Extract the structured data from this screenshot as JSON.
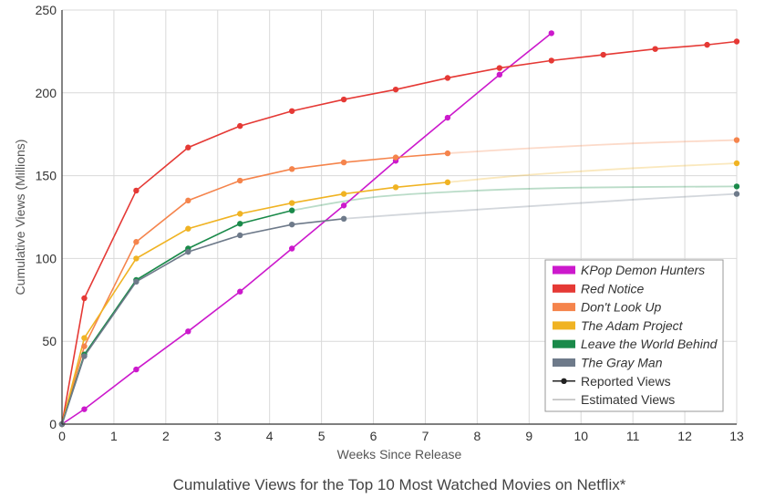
{
  "chart_data": {
    "type": "line",
    "title": "Cumulative Views for the Top 10 Most Watched Movies on Netflix*",
    "xlabel": "Weeks Since Release",
    "ylabel": "Cumulative Views (Millions)",
    "xlim": [
      0,
      13
    ],
    "ylim": [
      0,
      250
    ],
    "xticks": [
      "0",
      "1",
      "2",
      "3",
      "4",
      "5",
      "6",
      "7",
      "8",
      "9",
      "10",
      "11",
      "12",
      "13"
    ],
    "yticks": [
      "0",
      "50",
      "100",
      "150",
      "200",
      "250"
    ],
    "grid": true,
    "legend_position": "bottom-right",
    "legend": {
      "reported_label": "Reported Views",
      "estimated_label": "Estimated Views"
    },
    "series": [
      {
        "name": "KPop Demon Hunters",
        "color": "#cc19cc",
        "reported": [
          [
            0,
            0
          ],
          [
            0.43,
            9
          ],
          [
            1.43,
            33
          ],
          [
            2.43,
            56
          ],
          [
            3.43,
            80
          ],
          [
            4.43,
            106
          ],
          [
            5.43,
            132
          ],
          [
            6.43,
            159
          ],
          [
            7.43,
            185
          ],
          [
            8.43,
            211
          ],
          [
            9.43,
            236
          ]
        ],
        "estimated": []
      },
      {
        "name": "Red Notice",
        "color": "#e53935",
        "reported": [
          [
            0,
            0
          ],
          [
            0.43,
            76
          ],
          [
            1.43,
            141
          ],
          [
            2.43,
            167
          ],
          [
            3.43,
            180
          ],
          [
            4.43,
            189
          ],
          [
            5.43,
            196
          ],
          [
            6.43,
            202
          ],
          [
            7.43,
            209
          ],
          [
            8.43,
            215
          ],
          [
            9.43,
            219.5
          ],
          [
            10.43,
            223
          ],
          [
            11.43,
            226.5
          ],
          [
            12.43,
            229
          ],
          [
            13,
            231
          ]
        ],
        "estimated": []
      },
      {
        "name": "Don't Look Up",
        "color": "#f5844c",
        "reported": [
          [
            0,
            0
          ],
          [
            0.43,
            47
          ],
          [
            1.43,
            110
          ],
          [
            2.43,
            135
          ],
          [
            3.43,
            147
          ],
          [
            4.43,
            154
          ],
          [
            5.43,
            158
          ],
          [
            6.43,
            161
          ],
          [
            7.43,
            163.5
          ]
        ],
        "estimated": [
          [
            7.43,
            163.5
          ],
          [
            9,
            166.5
          ],
          [
            11,
            169.5
          ],
          [
            13,
            171.5
          ]
        ],
        "end_point": [
          13,
          171.5
        ]
      },
      {
        "name": "The Adam Project",
        "color": "#f0b323",
        "reported": [
          [
            0,
            0
          ],
          [
            0.43,
            52
          ],
          [
            1.43,
            100
          ],
          [
            2.43,
            118
          ],
          [
            3.43,
            127
          ],
          [
            4.43,
            133.5
          ],
          [
            5.43,
            139
          ],
          [
            6.43,
            143
          ],
          [
            7.43,
            146
          ]
        ],
        "estimated": [
          [
            7.43,
            146
          ],
          [
            9,
            150.5
          ],
          [
            11,
            154.5
          ],
          [
            13,
            157.5
          ]
        ],
        "end_point": [
          13,
          157.5
        ]
      },
      {
        "name": "Leave the World Behind",
        "color": "#1a8a4a",
        "reported": [
          [
            0,
            0
          ],
          [
            0.43,
            42
          ],
          [
            1.43,
            87
          ],
          [
            2.43,
            106
          ],
          [
            3.43,
            121
          ],
          [
            4.43,
            129
          ]
        ],
        "estimated": [
          [
            4.43,
            129
          ],
          [
            6,
            137
          ],
          [
            8,
            141
          ],
          [
            10,
            142.8
          ],
          [
            13,
            143.5
          ]
        ],
        "end_point": [
          13,
          143.5
        ]
      },
      {
        "name": "The Gray Man",
        "color": "#6e7a8a",
        "reported": [
          [
            0,
            0
          ],
          [
            0.43,
            41
          ],
          [
            1.43,
            86
          ],
          [
            2.43,
            104
          ],
          [
            3.43,
            114
          ],
          [
            4.43,
            120.5
          ],
          [
            5.43,
            124
          ]
        ],
        "estimated": [
          [
            5.43,
            124
          ],
          [
            7,
            127.5
          ],
          [
            9,
            131.5
          ],
          [
            11,
            135.5
          ],
          [
            13,
            139
          ]
        ],
        "end_point": [
          13,
          139
        ]
      }
    ]
  }
}
